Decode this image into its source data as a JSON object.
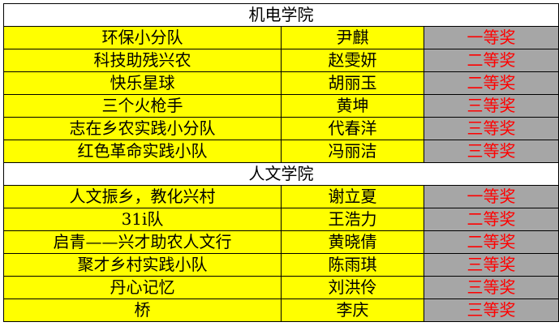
{
  "colors": {
    "row_bg": "#ffff00",
    "award_bg": "#a6a6a6",
    "award_text": "#ff0000"
  },
  "sections": [
    {
      "title": "机电学院",
      "rows": [
        {
          "team": "环保小分队",
          "leader": "尹麒",
          "award": "一等奖"
        },
        {
          "team": "科技助残兴农",
          "leader": "赵雯妍",
          "award": "二等奖"
        },
        {
          "team": "快乐星球",
          "leader": "胡丽玉",
          "award": "二等奖"
        },
        {
          "team": "三个火枪手",
          "leader": "黄坤",
          "award": "三等奖"
        },
        {
          "team": "志在乡农实践小分队",
          "leader": "代春洋",
          "award": "三等奖"
        },
        {
          "team": "红色革命实践小队",
          "leader": "冯丽洁",
          "award": "三等奖"
        }
      ]
    },
    {
      "title": "人文学院",
      "rows": [
        {
          "team": "人文振乡，教化兴村",
          "leader": "谢立夏",
          "award": "一等奖"
        },
        {
          "team": "31i队",
          "leader": "王浩力",
          "award": "二等奖"
        },
        {
          "team": "启青——兴才助农人文行",
          "leader": "黄晓倩",
          "award": "二等奖"
        },
        {
          "team": "聚才乡村实践小队",
          "leader": "陈雨琪",
          "award": "三等奖"
        },
        {
          "team": "丹心记忆",
          "leader": "刘洪伶",
          "award": "三等奖"
        },
        {
          "team": "桥",
          "leader": "李庆",
          "award": "三等奖"
        }
      ]
    }
  ]
}
